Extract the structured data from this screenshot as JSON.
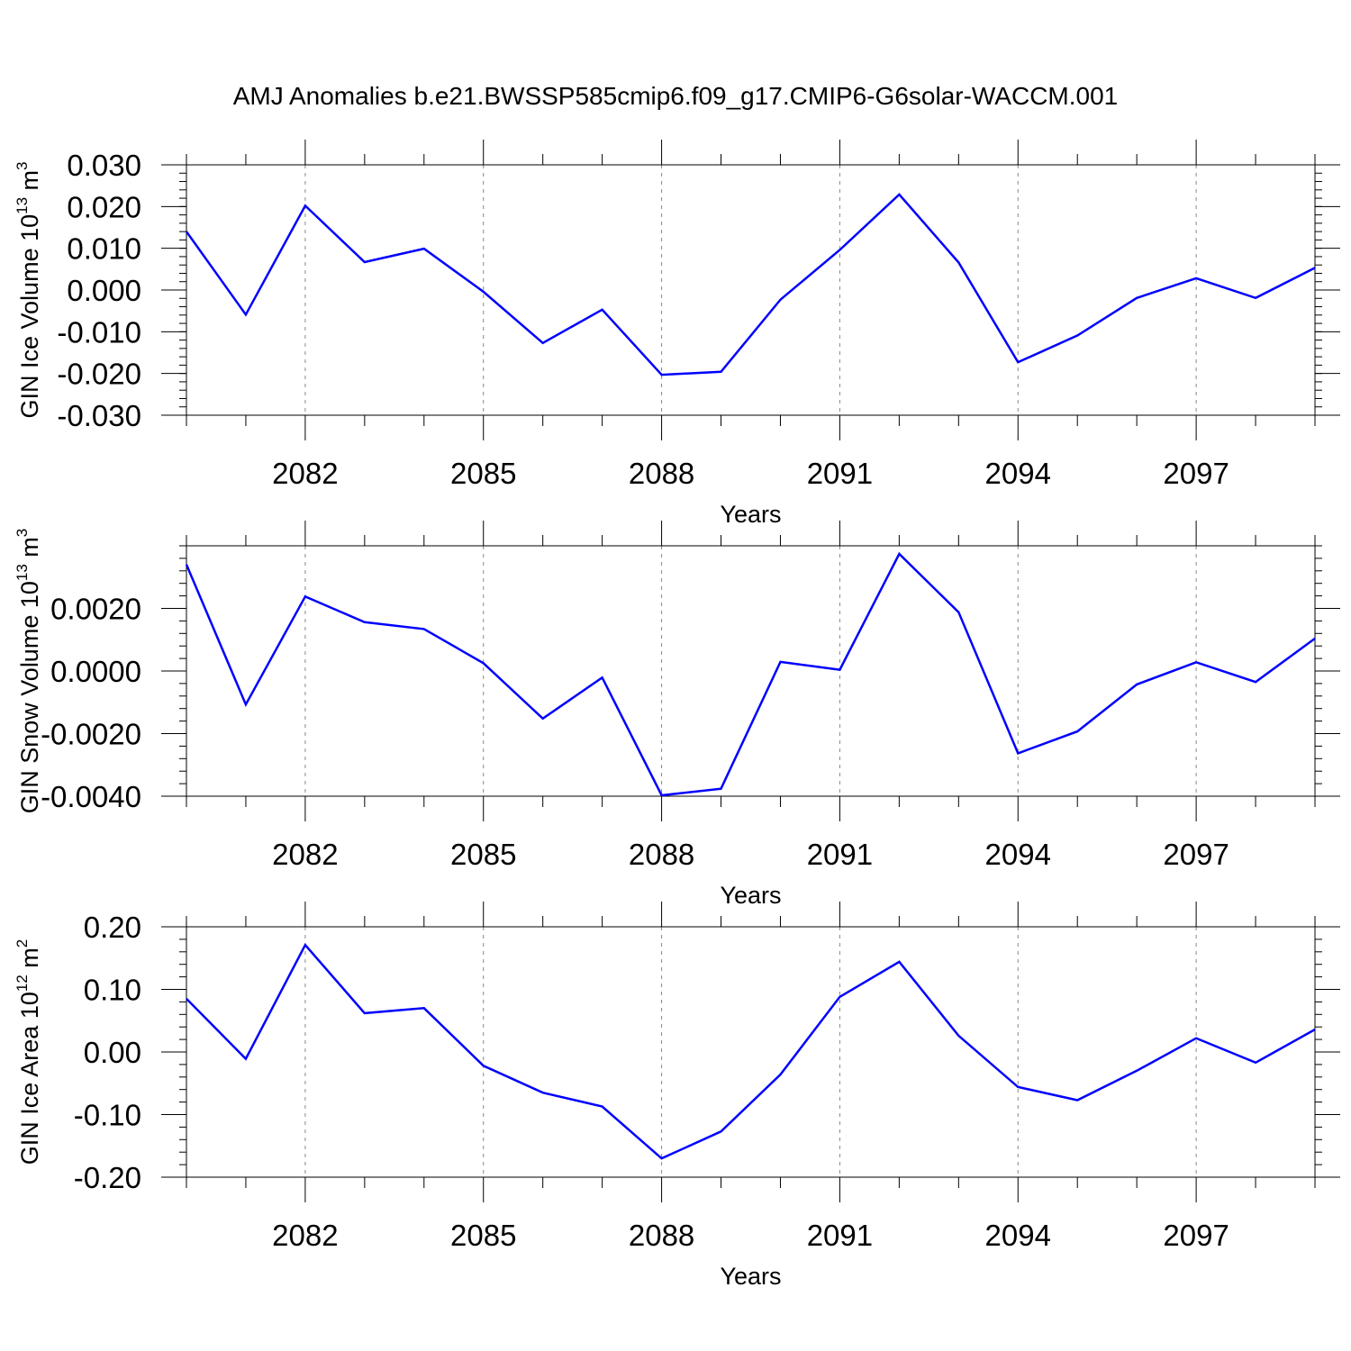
{
  "title": "AMJ Anomalies b.e21.BWSSP585cmip6.f09_g17.CMIP6-G6solar-WACCM.001",
  "colors": {
    "line": "#0000ff",
    "axis": "#000000",
    "grid": "#888888"
  },
  "chart_data": [
    {
      "type": "line",
      "ylabel_main": "GIN Ice Volume 10",
      "ylabel_exp": "13",
      "ylabel_unit": "m",
      "ylabel_unit_exp": "3",
      "xlabel": "Years",
      "xlim": [
        2080,
        2099
      ],
      "ylim": [
        -0.03,
        0.03
      ],
      "x_ticks": [
        2082,
        2085,
        2088,
        2091,
        2094,
        2097
      ],
      "y_ticks": [
        -0.03,
        -0.02,
        -0.01,
        0.0,
        0.01,
        0.02,
        0.03
      ],
      "y_tick_labels": [
        "-0.030",
        "-0.020",
        "-0.010",
        "0.000",
        "0.010",
        "0.020",
        "0.030"
      ],
      "y_minor_step": 0.002,
      "grid": "vertical dashed at major x ticks",
      "x": [
        2080,
        2081,
        2082,
        2083,
        2084,
        2085,
        2086,
        2087,
        2088,
        2089,
        2090,
        2091,
        2092,
        2093,
        2094,
        2095,
        2096,
        2097,
        2098,
        2099
      ],
      "values": [
        0.014,
        -0.0059,
        0.0202,
        0.0067,
        0.0099,
        -0.0004,
        -0.0127,
        -0.0047,
        -0.0203,
        -0.0196,
        -0.0023,
        0.0096,
        0.0229,
        0.0066,
        -0.0173,
        -0.0109,
        -0.0019,
        0.0028,
        -0.0019,
        0.0053
      ]
    },
    {
      "type": "line",
      "ylabel_main": "GIN Snow Volume 10",
      "ylabel_exp": "13",
      "ylabel_unit": "m",
      "ylabel_unit_exp": "3",
      "xlabel": "Years",
      "xlim": [
        2080,
        2099
      ],
      "ylim": [
        -0.004,
        0.004
      ],
      "x_ticks": [
        2082,
        2085,
        2088,
        2091,
        2094,
        2097
      ],
      "y_ticks": [
        -0.004,
        -0.002,
        0.0,
        0.002
      ],
      "y_tick_labels": [
        "-0.0040",
        "-0.0020",
        "0.0000",
        "0.0020"
      ],
      "y_minor_step": 0.0004,
      "grid": "vertical dashed at major x ticks",
      "x": [
        2080,
        2081,
        2082,
        2083,
        2084,
        2085,
        2086,
        2087,
        2088,
        2089,
        2090,
        2091,
        2092,
        2093,
        2094,
        2095,
        2096,
        2097,
        2098,
        2099
      ],
      "values": [
        0.0034,
        -0.00107,
        0.00238,
        0.00156,
        0.00134,
        0.00025,
        -0.00152,
        -0.00021,
        -0.00397,
        -0.00376,
        0.00029,
        4e-05,
        0.00374,
        0.00188,
        -0.00263,
        -0.00193,
        -0.00043,
        0.00028,
        -0.00035,
        0.00104
      ]
    },
    {
      "type": "line",
      "ylabel_main": "GIN Ice Area 10",
      "ylabel_exp": "12",
      "ylabel_unit": "m",
      "ylabel_unit_exp": "2",
      "xlabel": "Years",
      "xlim": [
        2080,
        2099
      ],
      "ylim": [
        -0.2,
        0.2
      ],
      "x_ticks": [
        2082,
        2085,
        2088,
        2091,
        2094,
        2097
      ],
      "y_ticks": [
        -0.2,
        -0.1,
        0.0,
        0.1,
        0.2
      ],
      "y_tick_labels": [
        "-0.20",
        "-0.10",
        "0.00",
        "0.10",
        "0.20"
      ],
      "y_minor_step": 0.02,
      "grid": "vertical dashed at major x ticks",
      "x": [
        2080,
        2081,
        2082,
        2083,
        2084,
        2085,
        2086,
        2087,
        2088,
        2089,
        2090,
        2091,
        2092,
        2093,
        2094,
        2095,
        2096,
        2097,
        2098,
        2099
      ],
      "values": [
        0.085,
        -0.011,
        0.171,
        0.062,
        0.07,
        -0.022,
        -0.065,
        -0.087,
        -0.17,
        -0.127,
        -0.036,
        0.088,
        0.144,
        0.026,
        -0.056,
        -0.077,
        -0.03,
        0.022,
        -0.017,
        0.036
      ]
    }
  ]
}
